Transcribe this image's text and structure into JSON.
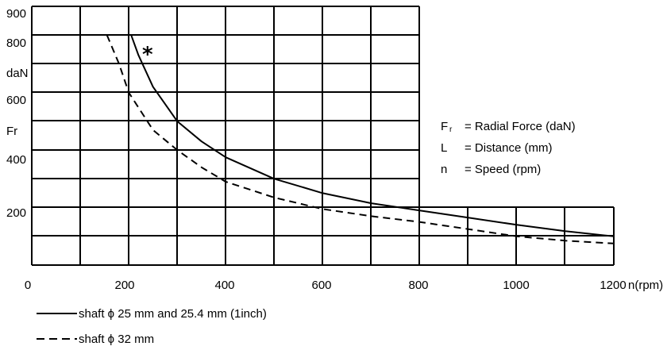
{
  "chart_data": {
    "type": "line",
    "x_ticks": [
      "0",
      "200",
      "400",
      "600",
      "800",
      "1000",
      "1200"
    ],
    "x_unit": "n(rpm)",
    "y_ticks": [
      {
        "value": 900,
        "label": "900"
      },
      {
        "value": 800,
        "label": "800"
      },
      {
        "value": 600,
        "label": "600"
      },
      {
        "value": 400,
        "label": "400"
      },
      {
        "value": 200,
        "label": "200"
      }
    ],
    "y_unit": "daN",
    "y_symbol": "Fr",
    "xlim": [
      0,
      1200
    ],
    "ylim": [
      0,
      900
    ],
    "grid": true,
    "annotation": "*",
    "series": [
      {
        "name": "shaft ϕ 25 mm and 25.4 mm (1inch)",
        "style": "solid",
        "x": [
          205,
          220,
          250,
          300,
          350,
          400,
          500,
          600,
          700,
          800,
          900,
          1000,
          1100,
          1200
        ],
        "y": [
          800,
          730,
          620,
          500,
          430,
          375,
          300,
          250,
          215,
          190,
          165,
          140,
          118,
          100
        ]
      },
      {
        "name": "shaft ϕ 32 mm",
        "style": "dashed",
        "x": [
          155,
          180,
          200,
          250,
          300,
          350,
          400,
          500,
          600,
          700,
          800,
          900,
          1000,
          1100,
          1200
        ],
        "y": [
          800,
          700,
          600,
          470,
          400,
          340,
          290,
          235,
          195,
          170,
          150,
          125,
          100,
          85,
          75
        ]
      }
    ],
    "legend_text": [
      {
        "sym": "F",
        "sub": "r",
        "text": "= Radial  Force (daN)"
      },
      {
        "sym": "L",
        "sub": "",
        "text": "= Distance (mm)"
      },
      {
        "sym": "n",
        "sub": "",
        "text": "= Speed (rpm)"
      }
    ]
  }
}
